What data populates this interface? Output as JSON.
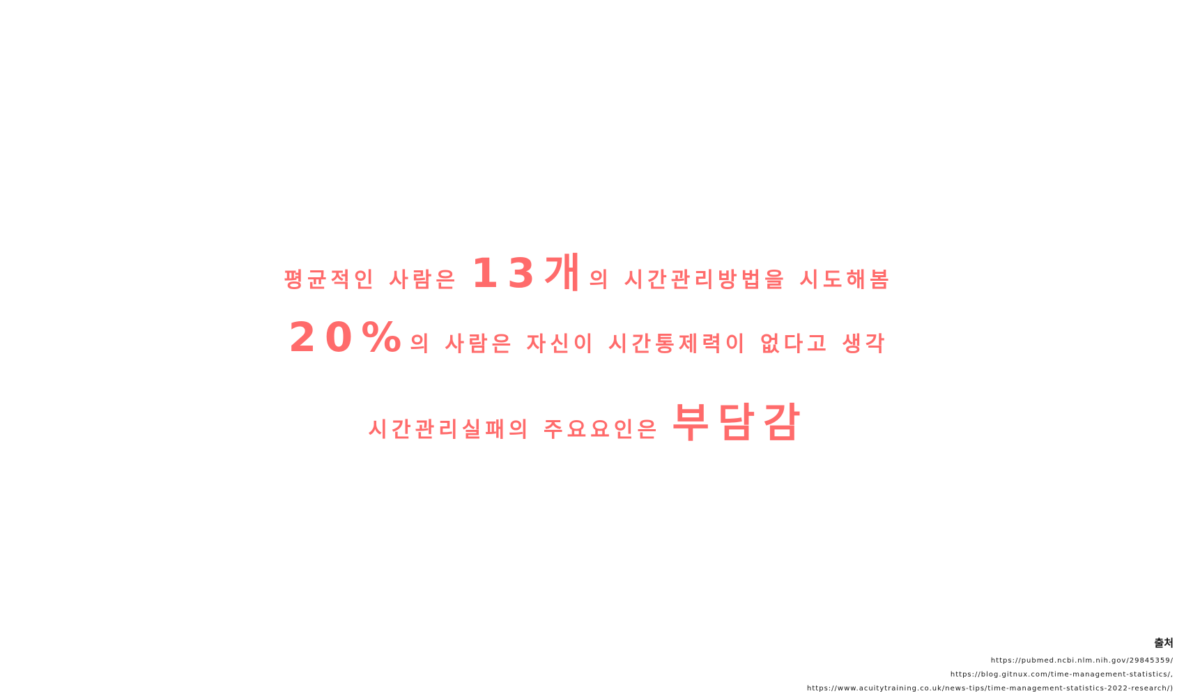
{
  "lines": [
    {
      "pre": "평균적인 사람은 ",
      "highlight": "13개",
      "post": "의 시간관리방법을 시도해봄"
    },
    {
      "pre": "",
      "highlight": "20%",
      "post": "의 사람은 자신이 시간통제력이 없다고 생각"
    },
    {
      "pre": "시간관리실패의 주요요인은 ",
      "highlight": "부담감",
      "post": ""
    }
  ],
  "sources": {
    "title": "출처",
    "links": [
      "https://pubmed.ncbi.nlm.nih.gov/29845359/",
      "https://blog.gitnux.com/time-management-statistics/,",
      "https://www.acuitytraining.co.uk/news-tips/time-management-statistics-2022-research/)"
    ]
  },
  "colors": {
    "accent": "#ff6b6b",
    "background": "#ffffff",
    "source_text": "#111111"
  }
}
